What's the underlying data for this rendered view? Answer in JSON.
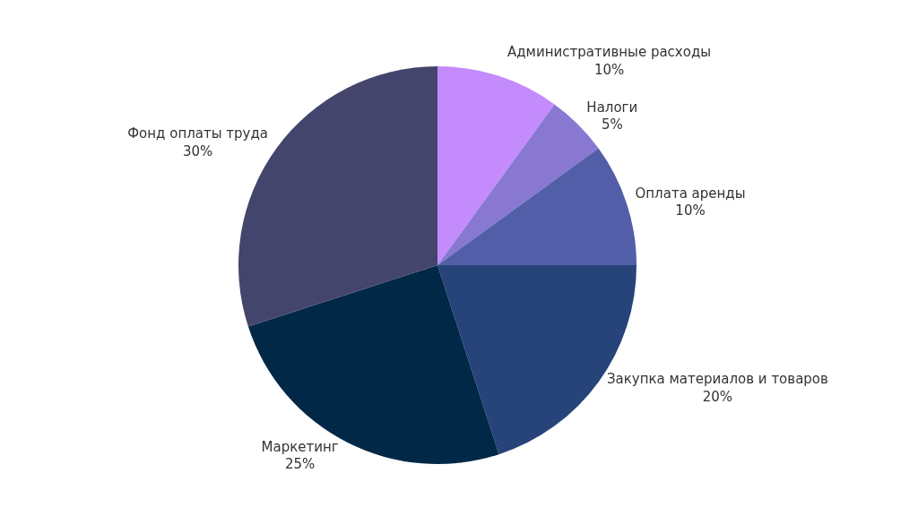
{
  "chart_data": {
    "type": "pie",
    "categories": [
      "Административные расходы",
      "Налоги",
      "Оплата аренды",
      "Закупка материалов и товаров",
      "Маркетинг",
      "Фонд оплаты труда"
    ],
    "values": [
      10,
      5,
      10,
      20,
      25,
      30
    ],
    "colors": [
      "#c48bfc",
      "#8878d2",
      "#525fa8",
      "#264479",
      "#022848",
      "#44456c"
    ],
    "value_labels": [
      "10%",
      "5%",
      "10%",
      "20%",
      "25%",
      "30%"
    ],
    "legend": false
  }
}
